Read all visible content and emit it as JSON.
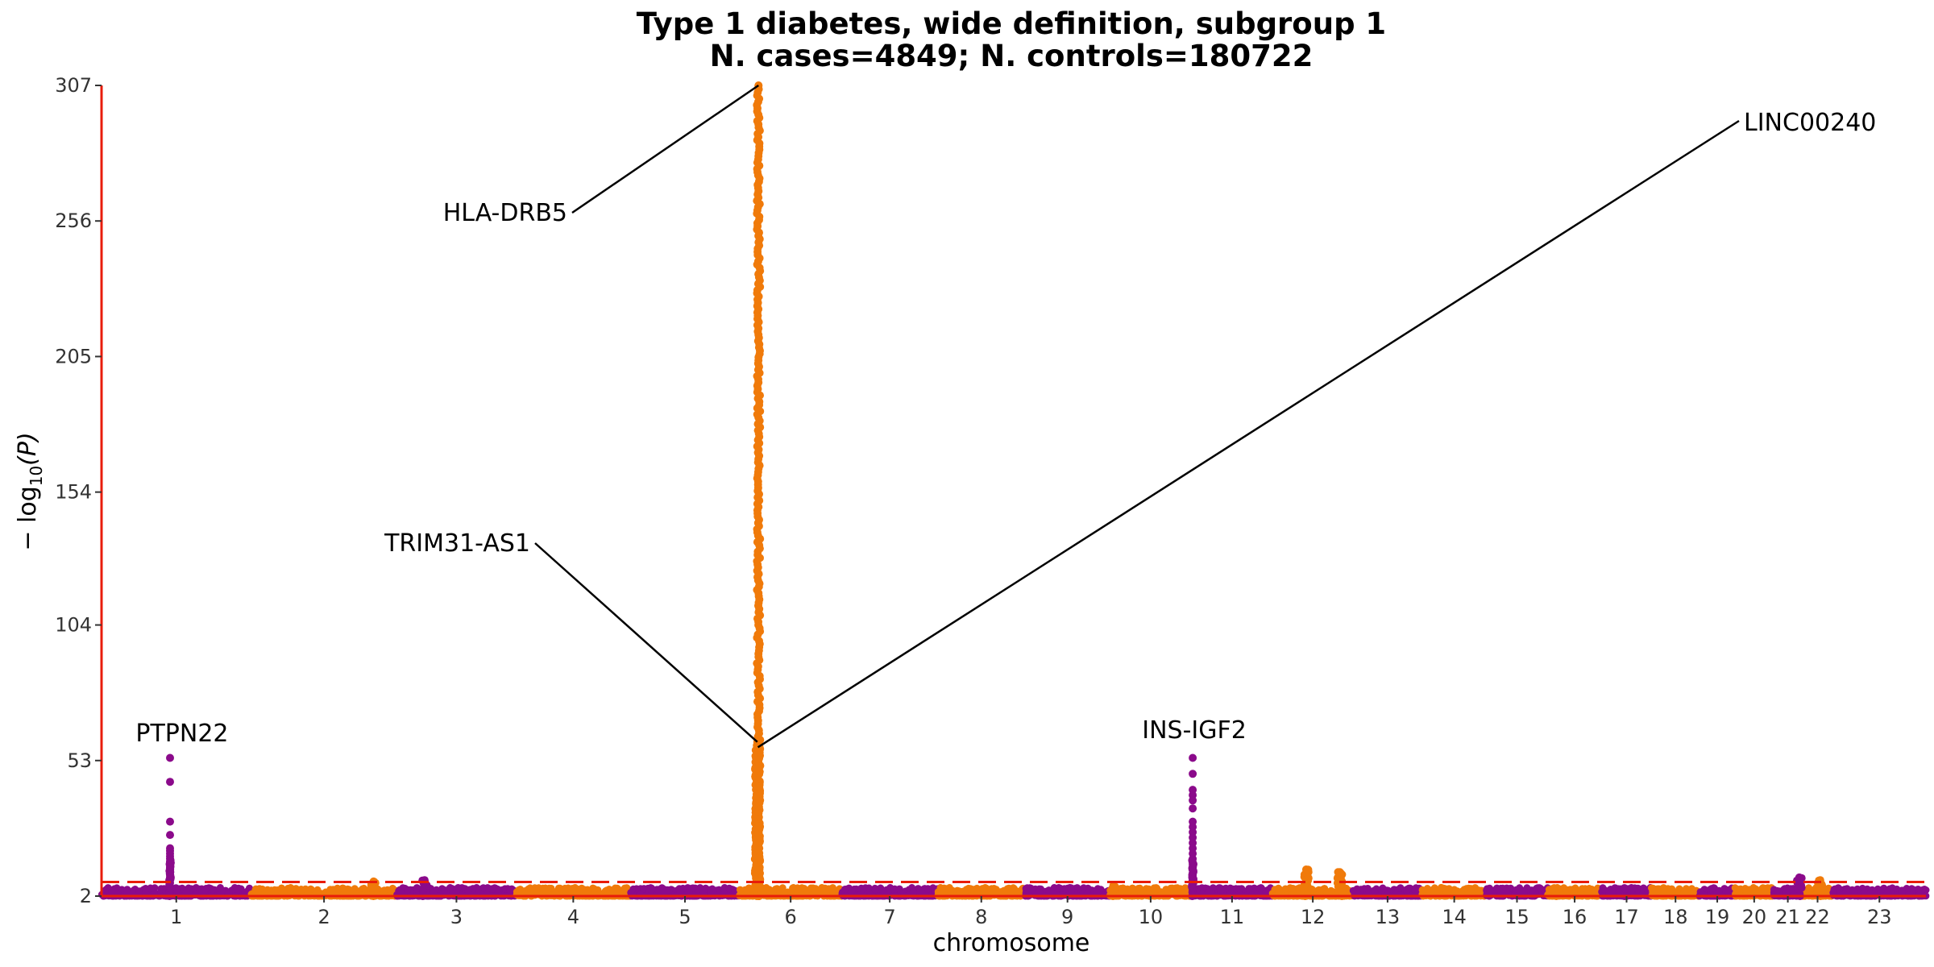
{
  "chart_data": {
    "type": "scatter",
    "title": "Type 1 diabetes, wide definition, subgroup 1",
    "subtitle": "N. cases=4849; N. controls=180722",
    "xlabel": "chromosome",
    "ylabel_prefix": "− log",
    "ylabel_sub": "10",
    "ylabel_suffix": "(P)",
    "ylim": [
      2,
      307
    ],
    "yticks": [
      2,
      53,
      104,
      154,
      205,
      256,
      307
    ],
    "significance_threshold": 7.3,
    "colors": {
      "odd": "#8B0A8B",
      "even": "#F07A0A",
      "threshold": "#E81C0A",
      "axis": "#E81C0A"
    },
    "chromosomes": [
      {
        "label": "1",
        "length": 249
      },
      {
        "label": "2",
        "length": 243
      },
      {
        "label": "3",
        "length": 198
      },
      {
        "label": "4",
        "length": 191
      },
      {
        "label": "5",
        "length": 181
      },
      {
        "label": "6",
        "length": 171
      },
      {
        "label": "7",
        "length": 159
      },
      {
        "label": "8",
        "length": 146
      },
      {
        "label": "9",
        "length": 141
      },
      {
        "label": "10",
        "length": 136
      },
      {
        "label": "11",
        "length": 135
      },
      {
        "label": "12",
        "length": 134
      },
      {
        "label": "13",
        "length": 115
      },
      {
        "label": "14",
        "length": 107
      },
      {
        "label": "15",
        "length": 102
      },
      {
        "label": "16",
        "length": 90
      },
      {
        "label": "17",
        "length": 83
      },
      {
        "label": "18",
        "length": 80
      },
      {
        "label": "19",
        "length": 59
      },
      {
        "label": "20",
        "length": 64
      },
      {
        "label": "21",
        "length": 48
      },
      {
        "label": "22",
        "length": 51
      },
      {
        "label": "23",
        "length": 155
      }
    ],
    "peaks": [
      {
        "chr": "1",
        "pos": 114,
        "max": 54,
        "label": "PTPN22",
        "values": [
          54,
          45,
          30,
          25,
          20,
          19,
          18,
          17,
          16,
          15,
          14,
          13,
          12,
          11,
          10,
          9,
          8,
          7
        ]
      },
      {
        "chr": "2",
        "pos": 204,
        "max": 7.5
      },
      {
        "chr": "3",
        "pos": 46,
        "max": 8
      },
      {
        "chr": "6",
        "pos": 32,
        "max": 307,
        "label": "HLA-DRB5"
      },
      {
        "chr": "6",
        "pos": 30,
        "max": 60,
        "label": "TRIM31-AS1"
      },
      {
        "chr": "6",
        "pos": 31,
        "max": 58,
        "label": "LINC00240"
      },
      {
        "chr": "10",
        "pos": 6,
        "max": 6
      },
      {
        "chr": "11",
        "pos": 2,
        "max": 54,
        "label": "INS-IGF2",
        "values": [
          54,
          48,
          42,
          40,
          38,
          35,
          30,
          28,
          26,
          24,
          22,
          20,
          18,
          16,
          14,
          12,
          10,
          8
        ]
      },
      {
        "chr": "12",
        "pos": 112,
        "max": 11
      },
      {
        "chr": "12",
        "pos": 56,
        "max": 12
      },
      {
        "chr": "16",
        "pos": 11,
        "max": 5
      },
      {
        "chr": "17",
        "pos": 38,
        "max": 5
      },
      {
        "chr": "21",
        "pos": 43,
        "max": 9
      },
      {
        "chr": "22",
        "pos": 30,
        "max": 8
      }
    ]
  }
}
